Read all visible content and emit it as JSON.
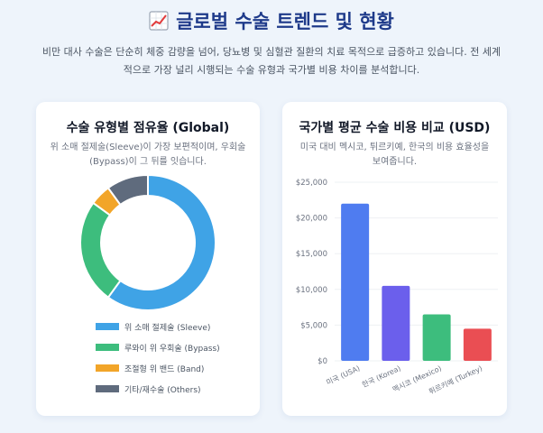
{
  "page": {
    "title_icon": "chart-increasing-icon",
    "title": "글로벌 수술 트렌드 및 현황",
    "description_line1": "비만 대사 수술은 단순히 체중 감량을 넘어, 당뇨병 및 심혈관 질환의 치료 목적으로 급증하고 있습니다. 전 세계",
    "description_line2": "적으로 가장 널리 시행되는 수술 유형과 국가별 비용 차이를 분석합니다."
  },
  "left_card": {
    "title": "수술 유형별 점유율 (Global)",
    "subtitle_line1": "위 소매 절제술(Sleeve)이 가장 보편적이며, 우회술",
    "subtitle_line2": "(Bypass)이 그 뒤를 잇습니다."
  },
  "right_card": {
    "title": "국가별 평균 수술 비용 비교 (USD)",
    "subtitle_line1": "미국 대비 멕시코, 튀르키예, 한국의 비용 효율성을",
    "subtitle_line2": "보여줍니다."
  },
  "chart_data": [
    {
      "type": "pie",
      "variant": "doughnut",
      "categories": [
        "위 소매 절제술 (Sleeve)",
        "루와이 위 우회술 (Bypass)",
        "조절형 위 밴드 (Band)",
        "기타/재수술 (Others)"
      ],
      "values": [
        60,
        25,
        5,
        10
      ],
      "colors": [
        "#3fa3e6",
        "#3dbd7d",
        "#f2a529",
        "#5f6b7d"
      ],
      "legend_position": "bottom"
    },
    {
      "type": "bar",
      "categories": [
        "미국 (USA)",
        "한국 (Korea)",
        "멕시코 (Mexico)",
        "튀르키예 (Turkey)"
      ],
      "values": [
        22000,
        10500,
        6500,
        4500
      ],
      "colors": [
        "#4f7cf0",
        "#6b5fec",
        "#3dbd7d",
        "#ea4e53"
      ],
      "ylim": [
        0,
        25000
      ],
      "yticks": [
        "$0",
        "$5,000",
        "$10,000",
        "$15,000",
        "$20,000",
        "$25,000"
      ],
      "grid": true
    }
  ]
}
